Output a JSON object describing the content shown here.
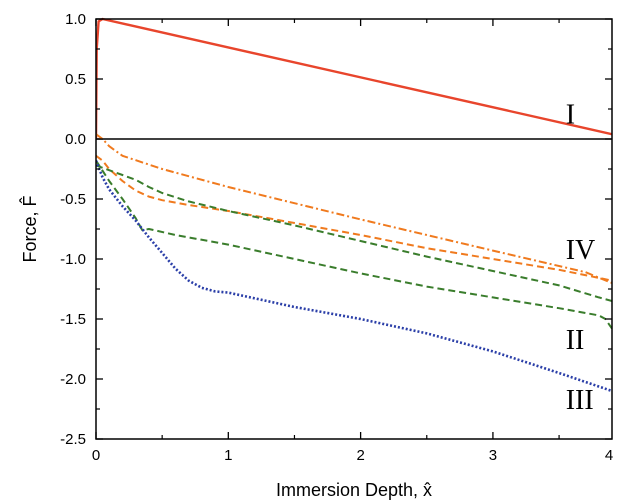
{
  "chart_data": {
    "type": "line",
    "xlabel": "Immersion Depth, x̂",
    "ylabel": "Force, F̂",
    "xlim": [
      0,
      3.9
    ],
    "ylim": [
      -2.5,
      1.0
    ],
    "xticks": [
      0,
      1,
      2,
      3,
      4
    ],
    "xtick_labels": [
      "0",
      "1",
      "2",
      "3",
      "4"
    ],
    "yticks": [
      1.0,
      0.5,
      0.0,
      -0.5,
      -1.0,
      -1.5,
      -2.0,
      -2.5
    ],
    "ytick_labels": [
      "1.0",
      "0.5",
      "0.0",
      "-0.5",
      "-1.0",
      "-1.5",
      "-2.0",
      "-2.5"
    ],
    "grid": false,
    "zero_line": true,
    "series": [
      {
        "name": "I",
        "color": "#e8452c",
        "style": "solid",
        "x": [
          0.0,
          0.005,
          0.02,
          0.05,
          3.9
        ],
        "y": [
          0.0,
          0.75,
          0.98,
          1.0,
          0.04
        ]
      },
      {
        "name": "IV",
        "color": "#f07a1e",
        "style": "dashdot",
        "x": [
          0.0,
          0.05,
          0.1,
          0.2,
          0.5,
          1.0,
          2.0,
          3.0,
          3.7,
          3.9
        ],
        "y": [
          0.04,
          0.0,
          -0.06,
          -0.14,
          -0.25,
          -0.4,
          -0.67,
          -0.93,
          -1.11,
          -1.2
        ]
      },
      {
        "name": "IV",
        "color": "#f07a1e",
        "style": "dashed",
        "x": [
          0.0,
          0.05,
          0.1,
          0.2,
          0.3,
          0.4,
          0.5,
          0.7,
          1.0,
          1.5,
          2.0,
          2.5,
          3.0,
          3.5,
          3.9
        ],
        "y": [
          -0.14,
          -0.18,
          -0.25,
          -0.35,
          -0.43,
          -0.48,
          -0.51,
          -0.55,
          -0.6,
          -0.7,
          -0.8,
          -0.91,
          -1.0,
          -1.09,
          -1.18
        ]
      },
      {
        "name": "II",
        "color": "#3a7d2c",
        "style": "dashed",
        "x": [
          0.0,
          0.1,
          0.2,
          0.3,
          0.4,
          0.5,
          0.7,
          1.0,
          1.5,
          2.0,
          2.5,
          3.0,
          3.5,
          3.8,
          3.9
        ],
        "y": [
          -0.22,
          -0.26,
          -0.3,
          -0.34,
          -0.4,
          -0.45,
          -0.52,
          -0.6,
          -0.72,
          -0.85,
          -0.98,
          -1.1,
          -1.22,
          -1.32,
          -1.35
        ]
      },
      {
        "name": "II",
        "color": "#3a7d2c",
        "style": "dashed",
        "x": [
          0.0,
          0.1,
          0.2,
          0.3,
          0.35,
          0.4,
          0.6,
          1.0,
          1.5,
          2.0,
          2.5,
          3.0,
          3.5,
          3.7,
          3.8,
          3.85,
          3.9
        ],
        "y": [
          -0.18,
          -0.35,
          -0.5,
          -0.66,
          -0.76,
          -0.75,
          -0.8,
          -0.88,
          -1.0,
          -1.12,
          -1.23,
          -1.32,
          -1.41,
          -1.45,
          -1.47,
          -1.5,
          -1.58
        ]
      },
      {
        "name": "III",
        "color": "#2b3fa8",
        "style": "dotted",
        "x": [
          0.0,
          0.05,
          0.1,
          0.2,
          0.3,
          0.4,
          0.5,
          0.6,
          0.7,
          0.8,
          0.9,
          1.0,
          1.5,
          2.0,
          2.5,
          3.0,
          3.5,
          3.9
        ],
        "y": [
          -0.18,
          -0.32,
          -0.42,
          -0.56,
          -0.68,
          -0.82,
          -0.95,
          -1.08,
          -1.18,
          -1.24,
          -1.27,
          -1.28,
          -1.4,
          -1.5,
          -1.62,
          -1.77,
          -1.95,
          -2.1
        ]
      }
    ],
    "annotations": [
      {
        "text": "I",
        "x": 3.55,
        "y": 0.13
      },
      {
        "text": "IV",
        "x": 3.55,
        "y": -1.0
      },
      {
        "text": "II",
        "x": 3.55,
        "y": -1.75
      },
      {
        "text": "III",
        "x": 3.55,
        "y": -2.25
      }
    ]
  }
}
